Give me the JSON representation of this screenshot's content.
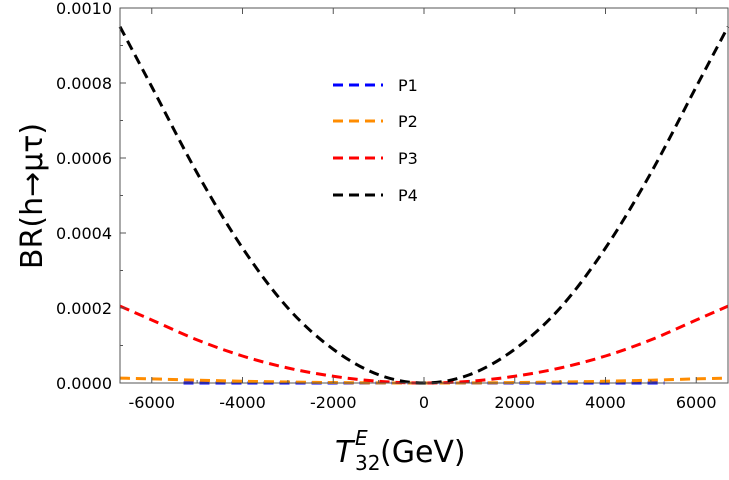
{
  "chart_data": {
    "type": "line",
    "xlabel": "T_32^E(GeV)",
    "xlabel_main": "T",
    "xlabel_sup": "E",
    "xlabel_sub": "32",
    "xlabel_unit": "(GeV)",
    "ylabel": "BR(h→μτ)",
    "xlim": [
      -6700,
      6700
    ],
    "ylim": [
      0,
      0.001
    ],
    "xticks": [
      "-6000",
      "-4000",
      "-2000",
      "0",
      "2000",
      "4000",
      "6000"
    ],
    "xtick_values": [
      -6000,
      -4000,
      -2000,
      0,
      2000,
      4000,
      6000
    ],
    "yticks": [
      "0.0000",
      "0.0002",
      "0.0004",
      "0.0006",
      "0.0008",
      "0.0010"
    ],
    "ytick_values": [
      0,
      0.0002,
      0.0004,
      0.0006,
      0.0008,
      0.001
    ],
    "grid": false,
    "legend_position": "top-center",
    "series": [
      {
        "name": "P1",
        "color": "#0000ff",
        "x": [
          -5300,
          -4000,
          -2000,
          0,
          2000,
          4000,
          5300
        ],
        "y": [
          0,
          0,
          0,
          0,
          0,
          0,
          0
        ]
      },
      {
        "name": "P2",
        "color": "#ff8c00",
        "x": [
          -6700,
          -6000,
          -5000,
          -4000,
          -3000,
          -2000,
          -1000,
          0,
          1000,
          2000,
          3000,
          4000,
          5000,
          6000,
          6700
        ],
        "y": [
          1.3e-05,
          1.1e-05,
          7.5e-06,
          4.7e-06,
          2.6e-06,
          1.2e-06,
          3e-07,
          0,
          3e-07,
          1.2e-06,
          2.6e-06,
          4.7e-06,
          7.5e-06,
          1.1e-05,
          1.3e-05
        ]
      },
      {
        "name": "P3",
        "color": "#ff0000",
        "x": [
          -6700,
          -6000,
          -5000,
          -4000,
          -3000,
          -2000,
          -1000,
          0,
          1000,
          2000,
          3000,
          4000,
          5000,
          6000,
          6700
        ],
        "y": [
          0.000205,
          0.000168,
          0.000115,
          7.2e-05,
          4e-05,
          1.8e-05,
          4.5e-06,
          0,
          4.5e-06,
          1.8e-05,
          4e-05,
          7.2e-05,
          0.000115,
          0.000168,
          0.000205
        ]
      },
      {
        "name": "P4",
        "color": "#000000",
        "x": [
          -6700,
          -6000,
          -5000,
          -4000,
          -3000,
          -2000,
          -1000,
          0,
          1000,
          2000,
          3000,
          4000,
          5000,
          6000,
          6700
        ],
        "y": [
          0.00095,
          0.00079,
          0.00056,
          0.00036,
          0.0002,
          9e-05,
          2.2e-05,
          0,
          2.2e-05,
          9e-05,
          0.0002,
          0.00036,
          0.00056,
          0.00079,
          0.00095
        ]
      }
    ]
  }
}
